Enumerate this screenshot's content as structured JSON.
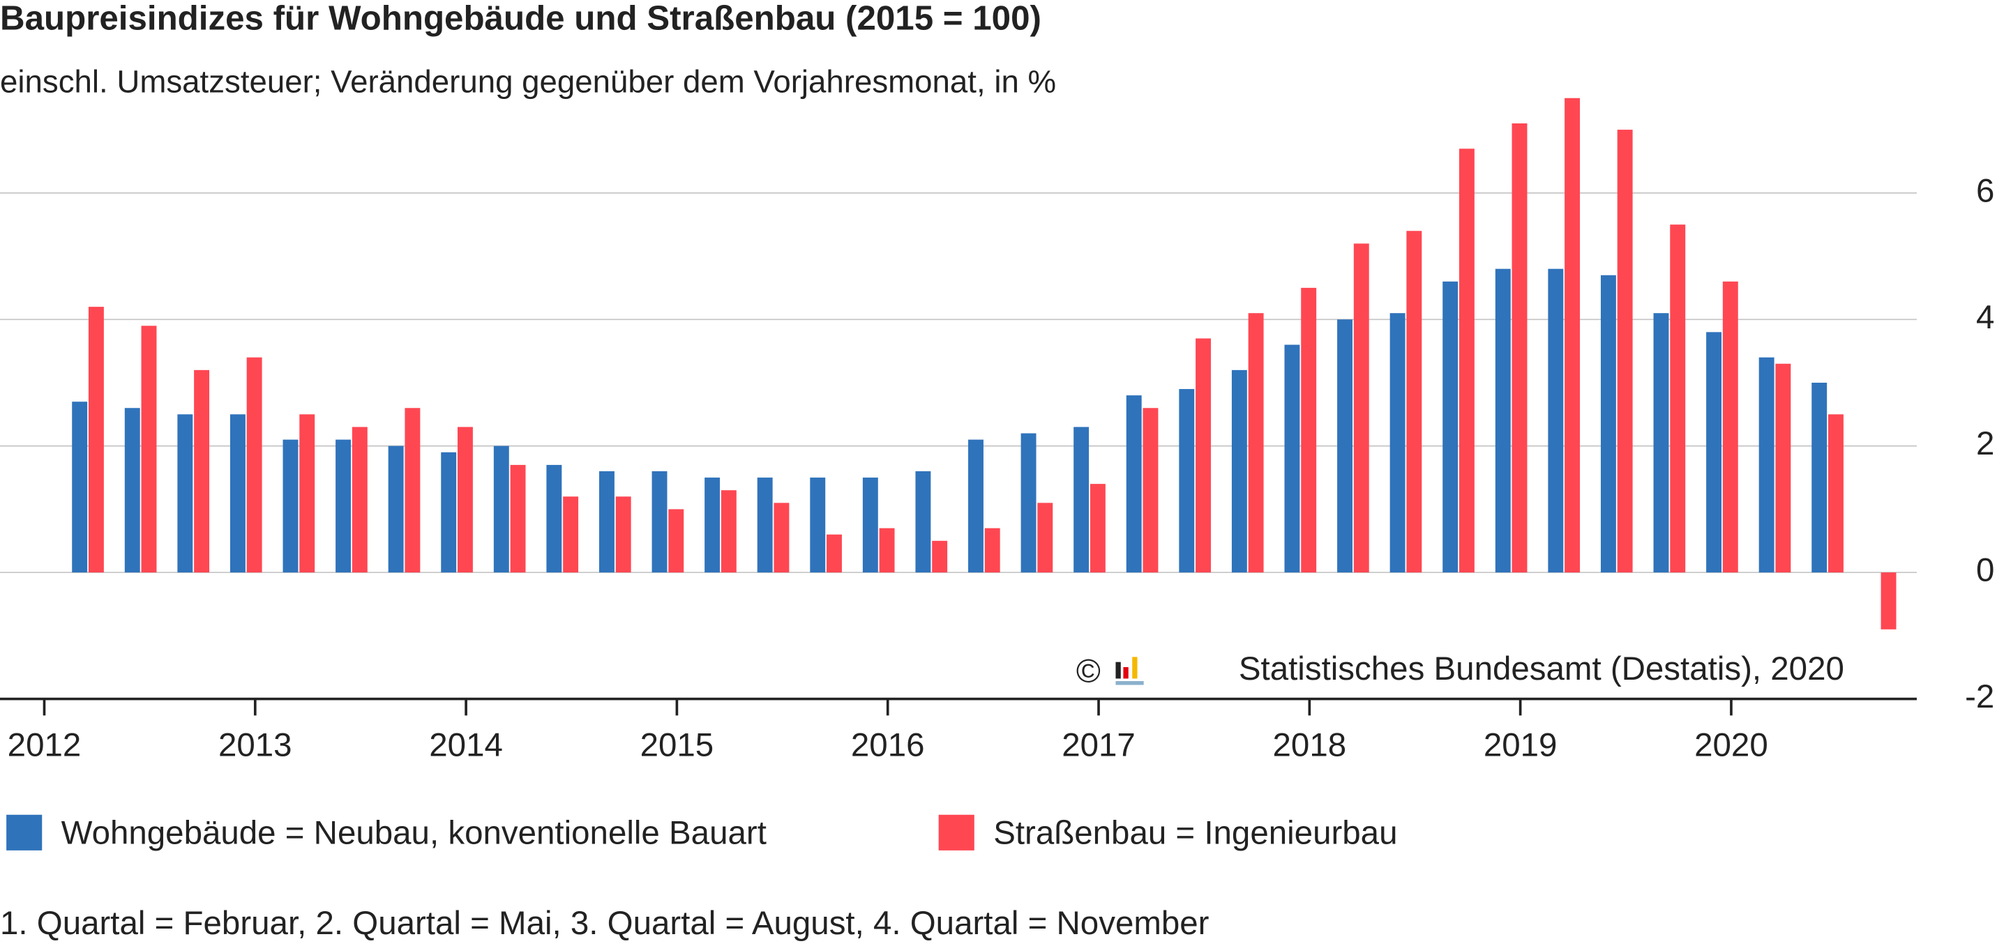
{
  "chart_data": {
    "type": "bar",
    "title": "Baupreisindizes für Wohngebäude und Straßenbau (2015 = 100)",
    "subtitle": "einschl. Umsatzsteuer; Veränderung gegenüber dem Vorjahresmonat, in %",
    "categories": [
      null,
      null,
      null,
      null,
      null,
      null,
      null,
      null,
      null,
      null,
      null,
      null,
      null,
      null,
      null,
      null,
      null,
      null,
      null,
      null,
      null,
      null,
      null,
      null,
      null,
      null,
      null,
      null,
      null,
      null,
      null,
      null,
      null,
      null,
      null
    ],
    "series": [
      {
        "name": "Wohngebäude = Neubau, konventionelle Bauart",
        "color": "#2f73bb",
        "values": [
          2.7,
          2.6,
          2.5,
          2.5,
          2.1,
          2.1,
          2.0,
          1.9,
          2.0,
          1.7,
          1.6,
          1.6,
          1.5,
          1.5,
          1.5,
          1.5,
          1.6,
          2.1,
          2.2,
          2.3,
          2.8,
          2.9,
          3.2,
          3.6,
          4.0,
          4.1,
          4.6,
          4.8,
          4.8,
          4.7,
          4.1,
          3.8,
          3.4,
          3.0,
          null
        ]
      },
      {
        "name": "Straßenbau = Ingenieurbau",
        "color": "#ff4752",
        "values": [
          4.2,
          3.9,
          3.2,
          3.4,
          2.5,
          2.3,
          2.6,
          2.3,
          1.7,
          1.2,
          1.2,
          1.0,
          1.3,
          1.1,
          0.6,
          0.7,
          0.5,
          0.7,
          1.1,
          1.4,
          2.6,
          3.7,
          4.1,
          4.5,
          5.2,
          5.4,
          6.7,
          7.1,
          7.5,
          7.0,
          5.5,
          4.6,
          3.3,
          2.5,
          -0.9
        ]
      }
    ],
    "xlim": [
      2011.79,
      2020.88
    ],
    "xticks": [
      2012,
      2013,
      2014,
      2015,
      2016,
      2017,
      2018,
      2019,
      2020
    ],
    "ylim": [
      -2,
      7.6
    ],
    "yticks": [
      -2,
      0,
      2,
      4,
      6
    ],
    "grid": true,
    "copyright": "©",
    "source": "Statistisches Bundesamt (Destatis), 2020",
    "footnote": "1. Quartal = Februar, 2. Quartal = Mai, 3. Quartal = August, 4. Quartal = November"
  }
}
